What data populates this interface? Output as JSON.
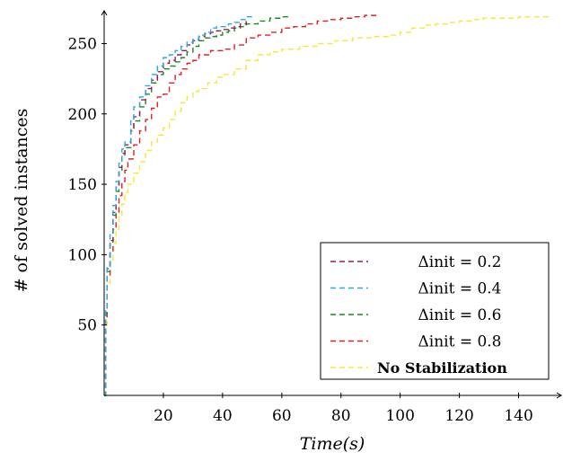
{
  "chart_data": {
    "type": "line",
    "title": "",
    "xlabel": "Time(s)",
    "ylabel": "# of solved instances",
    "xlim": [
      0,
      155
    ],
    "ylim": [
      0,
      272
    ],
    "xticks": [
      20,
      40,
      60,
      80,
      100,
      120,
      140
    ],
    "yticks": [
      50,
      100,
      150,
      200,
      250
    ],
    "legend_position": "bottom-right",
    "series": [
      {
        "name": "Δinit = 0.2",
        "color": "#9b1b5a",
        "points": [
          [
            0,
            0
          ],
          [
            0.5,
            60
          ],
          [
            1,
            90
          ],
          [
            2,
            110
          ],
          [
            3,
            130
          ],
          [
            4,
            148
          ],
          [
            5,
            162
          ],
          [
            6,
            172
          ],
          [
            7,
            178
          ],
          [
            9,
            190
          ],
          [
            10,
            198
          ],
          [
            12,
            210
          ],
          [
            14,
            218
          ],
          [
            16,
            224
          ],
          [
            18,
            230
          ],
          [
            20,
            236
          ],
          [
            22,
            238
          ],
          [
            24,
            242
          ],
          [
            26,
            245
          ],
          [
            28,
            249
          ],
          [
            30,
            252
          ],
          [
            32,
            255
          ],
          [
            34,
            257
          ],
          [
            36,
            258
          ],
          [
            38,
            259
          ],
          [
            40,
            260
          ],
          [
            42,
            261
          ],
          [
            44,
            262
          ],
          [
            46,
            264
          ],
          [
            48,
            266
          ]
        ]
      },
      {
        "name": "Δinit = 0.4",
        "color": "#29abe2",
        "points": [
          [
            0,
            0
          ],
          [
            0.5,
            60
          ],
          [
            1,
            92
          ],
          [
            2,
            115
          ],
          [
            3,
            135
          ],
          [
            4,
            152
          ],
          [
            5,
            165
          ],
          [
            6,
            175
          ],
          [
            7,
            180
          ],
          [
            9,
            195
          ],
          [
            10,
            205
          ],
          [
            12,
            212
          ],
          [
            14,
            220
          ],
          [
            16,
            228
          ],
          [
            18,
            234
          ],
          [
            20,
            240
          ],
          [
            22,
            242
          ],
          [
            24,
            245
          ],
          [
            26,
            248
          ],
          [
            28,
            251
          ],
          [
            30,
            253
          ],
          [
            32,
            256
          ],
          [
            34,
            258
          ],
          [
            36,
            261
          ],
          [
            38,
            262
          ],
          [
            40,
            262
          ],
          [
            42,
            264
          ],
          [
            44,
            265
          ],
          [
            46,
            267
          ],
          [
            48,
            269
          ],
          [
            50,
            270
          ]
        ]
      },
      {
        "name": "Δinit = 0.6",
        "color": "#1a8a1a",
        "points": [
          [
            0,
            0
          ],
          [
            0.5,
            58
          ],
          [
            1,
            88
          ],
          [
            2,
            108
          ],
          [
            3,
            128
          ],
          [
            4,
            145
          ],
          [
            5,
            160
          ],
          [
            6,
            170
          ],
          [
            7,
            176
          ],
          [
            9,
            188
          ],
          [
            10,
            195
          ],
          [
            12,
            205
          ],
          [
            14,
            214
          ],
          [
            16,
            222
          ],
          [
            18,
            228
          ],
          [
            20,
            232
          ],
          [
            22,
            234
          ],
          [
            24,
            237
          ],
          [
            26,
            240
          ],
          [
            28,
            244
          ],
          [
            30,
            248
          ],
          [
            32,
            252
          ],
          [
            34,
            254
          ],
          [
            36,
            255
          ],
          [
            38,
            256
          ],
          [
            40,
            258
          ],
          [
            42,
            259
          ],
          [
            44,
            261
          ],
          [
            46,
            262
          ],
          [
            48,
            264
          ],
          [
            52,
            266
          ],
          [
            56,
            268
          ],
          [
            60,
            269
          ],
          [
            62,
            270
          ]
        ]
      },
      {
        "name": "Δinit = 0.8",
        "color": "#e02020",
        "points": [
          [
            0,
            0
          ],
          [
            0.5,
            55
          ],
          [
            1,
            85
          ],
          [
            2,
            102
          ],
          [
            3,
            118
          ],
          [
            4,
            130
          ],
          [
            5,
            142
          ],
          [
            6,
            152
          ],
          [
            7,
            160
          ],
          [
            8,
            168
          ],
          [
            10,
            178
          ],
          [
            12,
            188
          ],
          [
            14,
            196
          ],
          [
            16,
            204
          ],
          [
            18,
            212
          ],
          [
            20,
            214
          ],
          [
            22,
            222
          ],
          [
            24,
            228
          ],
          [
            26,
            232
          ],
          [
            28,
            236
          ],
          [
            30,
            238
          ],
          [
            32,
            242
          ],
          [
            36,
            245
          ],
          [
            40,
            246
          ],
          [
            44,
            249
          ],
          [
            48,
            254
          ],
          [
            52,
            256
          ],
          [
            56,
            258
          ],
          [
            60,
            261
          ],
          [
            64,
            262
          ],
          [
            68,
            264
          ],
          [
            72,
            266
          ],
          [
            76,
            267
          ],
          [
            80,
            268
          ],
          [
            84,
            269
          ],
          [
            88,
            270
          ],
          [
            92,
            270
          ]
        ]
      },
      {
        "name": "No Stabilization",
        "color": "#f5e83a",
        "points": [
          [
            0,
            0
          ],
          [
            0.5,
            50
          ],
          [
            1,
            80
          ],
          [
            2,
            95
          ],
          [
            3,
            108
          ],
          [
            4,
            118
          ],
          [
            5,
            128
          ],
          [
            6,
            136
          ],
          [
            7,
            144
          ],
          [
            8,
            150
          ],
          [
            10,
            158
          ],
          [
            12,
            166
          ],
          [
            14,
            174
          ],
          [
            16,
            180
          ],
          [
            18,
            185
          ],
          [
            20,
            190
          ],
          [
            22,
            196
          ],
          [
            24,
            202
          ],
          [
            26,
            208
          ],
          [
            28,
            212
          ],
          [
            30,
            216
          ],
          [
            32,
            218
          ],
          [
            35,
            222
          ],
          [
            38,
            226
          ],
          [
            40,
            228
          ],
          [
            44,
            232
          ],
          [
            48,
            238
          ],
          [
            52,
            242
          ],
          [
            56,
            244
          ],
          [
            60,
            246
          ],
          [
            66,
            248
          ],
          [
            72,
            250
          ],
          [
            78,
            252
          ],
          [
            84,
            254
          ],
          [
            90,
            255
          ],
          [
            96,
            256
          ],
          [
            100,
            258
          ],
          [
            104,
            261
          ],
          [
            108,
            263
          ],
          [
            112,
            264
          ],
          [
            116,
            265
          ],
          [
            120,
            266
          ],
          [
            124,
            267
          ],
          [
            128,
            268
          ],
          [
            134,
            268
          ],
          [
            140,
            269
          ],
          [
            146,
            269
          ],
          [
            150,
            270
          ]
        ]
      }
    ]
  }
}
